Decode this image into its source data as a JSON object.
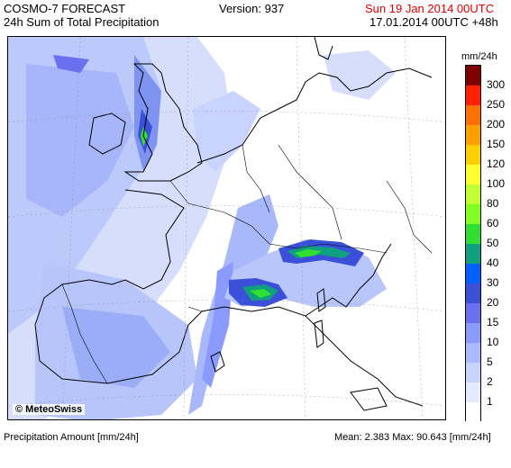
{
  "header": {
    "product": "COSMO-7 FORECAST",
    "subtitle": "24h Sum of Total Precipitation",
    "version": "Version: 937",
    "valid_time": "Sun 19 Jan 2014 00UTC",
    "run_info": "17.01.2014 00UTC +48h",
    "valid_time_color": "#e00000"
  },
  "map": {
    "copyright": "© MeteoSwiss"
  },
  "legend": {
    "unit": "mm/24h",
    "levels": [
      "300",
      "250",
      "200",
      "150",
      "120",
      "100",
      "80",
      "60",
      "50",
      "40",
      "30",
      "20",
      "15",
      "10",
      "5",
      "2",
      "1"
    ],
    "colors": [
      "#7f0000",
      "#ff2000",
      "#ff7000",
      "#ffa000",
      "#ffd000",
      "#ffff30",
      "#c0ff30",
      "#80ff20",
      "#30e030",
      "#10a080",
      "#0060ff",
      "#3a50d8",
      "#6a70f0",
      "#8a9aff",
      "#aabaff",
      "#c8d4ff",
      "#e4eaff",
      "#ffffff"
    ]
  },
  "footer": {
    "left": "Precipitation Amount [mm/24h]",
    "right": "Mean:   2.383 Max:  90.643 [mm/24h]"
  }
}
